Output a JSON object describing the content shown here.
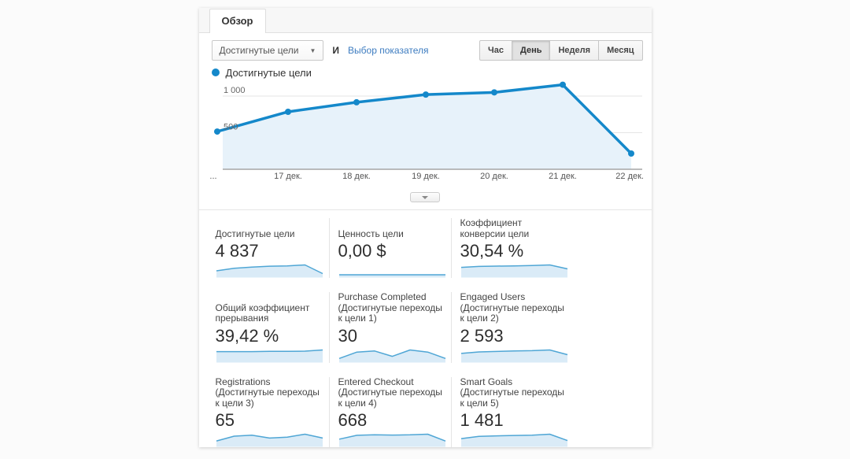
{
  "panel": {
    "tab": "Обзор"
  },
  "toolbar": {
    "metric_selector": "Достигнутые цели",
    "conjunction": "И",
    "select_metric_link": "Выбор показателя",
    "granularity": [
      {
        "label": "Час",
        "selected": false
      },
      {
        "label": "День",
        "selected": true
      },
      {
        "label": "Неделя",
        "selected": false
      },
      {
        "label": "Месяц",
        "selected": false
      }
    ]
  },
  "chart_data": {
    "type": "area",
    "legend": "Достигнутые цели",
    "x": [
      "...",
      "17 дек.",
      "18 дек.",
      "19 дек.",
      "20 дек.",
      "21 дек.",
      "22 дек."
    ],
    "values": [
      515,
      785,
      915,
      1020,
      1050,
      1155,
      215
    ],
    "ylim": [
      0,
      1250
    ],
    "yticks": [
      500,
      1000
    ],
    "ytick_labels": [
      "500",
      "1 000"
    ],
    "grid": "horizontal",
    "legend_position": "top-left"
  },
  "metrics": [
    {
      "label": "Достигнутые цели",
      "value": "4 837",
      "spark": [
        515,
        785,
        915,
        1020,
        1050,
        1155,
        215
      ]
    },
    {
      "label": "Ценность цели",
      "value": "0,00 $",
      "spark": [
        0,
        0,
        0,
        0,
        0,
        0,
        0
      ]
    },
    {
      "label": "Коэффициент конверсии цели",
      "value": "30,54 %",
      "spark": [
        27,
        30,
        31,
        32,
        33,
        35,
        22
      ]
    },
    {
      "label": "Общий коэффициент прерывания",
      "value": "39,42 %",
      "spark": [
        38,
        38,
        38,
        39,
        39,
        40,
        45
      ]
    },
    {
      "label": "Purchase Completed (Достигнутые переходы к цели 1)",
      "value": "30",
      "spark": [
        1,
        4,
        4.5,
        2,
        5,
        4,
        1
      ]
    },
    {
      "label": "Engaged Users (Достигнутые переходы к цели 2)",
      "value": "2 593",
      "spark": [
        290,
        350,
        370,
        390,
        400,
        430,
        240
      ]
    },
    {
      "label": "Registrations (Достигнутые переходы к цели 3)",
      "value": "65",
      "spark": [
        4,
        9,
        10,
        7,
        8,
        11,
        7
      ]
    },
    {
      "label": "Entered Checkout (Достигнутые переходы к цели 4)",
      "value": "668",
      "spark": [
        60,
        100,
        105,
        103,
        105,
        112,
        40
      ]
    },
    {
      "label": "Smart Goals (Достигнутые переходы к цели 5)",
      "value": "1 481",
      "spark": [
        170,
        230,
        245,
        255,
        265,
        290,
        115
      ]
    }
  ],
  "colors": {
    "chart_line": "#1488ca",
    "chart_fill": "#e7f2fa",
    "spark_line": "#4fa6d5",
    "spark_fill": "#daebf7",
    "link": "#3d7cc0",
    "axis_line": "#a6a6a6",
    "grid_line": "#e5e5e5"
  }
}
